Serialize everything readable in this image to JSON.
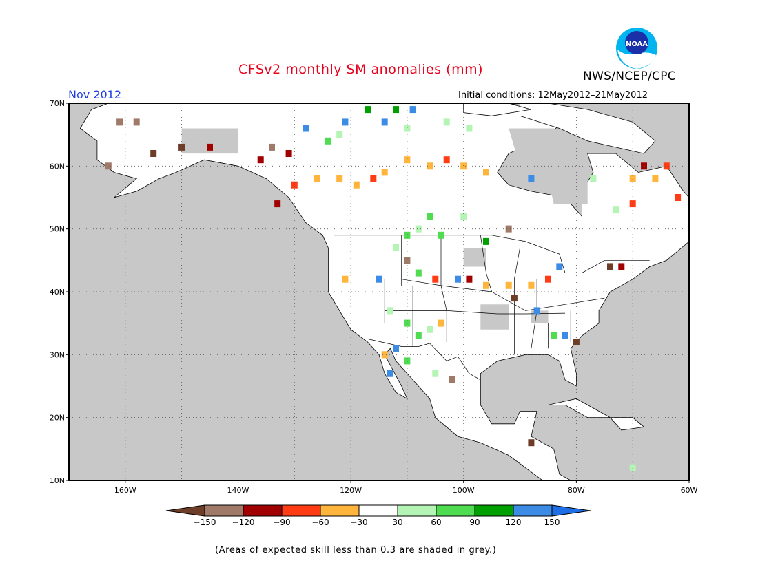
{
  "header": {
    "title": "CFSv2 monthly SM anomalies (mm)",
    "org": "NWS/NCEP/CPC",
    "logo_text": "NOAA",
    "valid_month": "Nov 2012",
    "initial_conditions": "Initial conditions: 12May2012–21May2012"
  },
  "map": {
    "projection": "lat-lon",
    "lon_range": [
      -170,
      -60
    ],
    "lat_range": [
      10,
      70
    ],
    "lat_labels": [
      "70N",
      "60N",
      "50N",
      "40N",
      "30N",
      "20N",
      "10N"
    ],
    "lon_labels": [
      "160W",
      "140W",
      "120W",
      "100W",
      "80W",
      "60W"
    ],
    "grid": "dotted",
    "ocean_color": "#c8c8c8",
    "land_color": "#ffffff",
    "anomaly_cells": [
      {
        "lon": -161,
        "lat": 67,
        "value": -130
      },
      {
        "lon": -158,
        "lat": 67,
        "value": -130
      },
      {
        "lon": -163,
        "lat": 60,
        "value": -130
      },
      {
        "lon": -155,
        "lat": 62,
        "value": -150
      },
      {
        "lon": -150,
        "lat": 63,
        "value": -150
      },
      {
        "lon": -145,
        "lat": 63,
        "value": -100
      },
      {
        "lon": -136,
        "lat": 61,
        "value": -100
      },
      {
        "lon": -134,
        "lat": 63,
        "value": -130
      },
      {
        "lon": -131,
        "lat": 62,
        "value": -100
      },
      {
        "lon": -130,
        "lat": 57,
        "value": -70
      },
      {
        "lon": -126,
        "lat": 58,
        "value": -45
      },
      {
        "lon": -122,
        "lat": 58,
        "value": -45
      },
      {
        "lon": -119,
        "lat": 57,
        "value": -45
      },
      {
        "lon": -116,
        "lat": 58,
        "value": -70
      },
      {
        "lon": -114,
        "lat": 59,
        "value": -45
      },
      {
        "lon": -110,
        "lat": 61,
        "value": -45
      },
      {
        "lon": -106,
        "lat": 60,
        "value": -45
      },
      {
        "lon": -103,
        "lat": 61,
        "value": -70
      },
      {
        "lon": -100,
        "lat": 60,
        "value": -45
      },
      {
        "lon": -96,
        "lat": 59,
        "value": -45
      },
      {
        "lon": -133,
        "lat": 54,
        "value": -100
      },
      {
        "lon": -128,
        "lat": 66,
        "value": 130
      },
      {
        "lon": -121,
        "lat": 67,
        "value": 130
      },
      {
        "lon": -114,
        "lat": 67,
        "value": 130
      },
      {
        "lon": -112,
        "lat": 69,
        "value": 100
      },
      {
        "lon": -117,
        "lat": 69,
        "value": 100
      },
      {
        "lon": -109,
        "lat": 69,
        "value": 130
      },
      {
        "lon": -122,
        "lat": 65,
        "value": 45
      },
      {
        "lon": -110,
        "lat": 66,
        "value": 45
      },
      {
        "lon": -103,
        "lat": 67,
        "value": 45
      },
      {
        "lon": -99,
        "lat": 66,
        "value": 45
      },
      {
        "lon": -124,
        "lat": 64,
        "value": 75
      },
      {
        "lon": -106,
        "lat": 52,
        "value": 75
      },
      {
        "lon": -108,
        "lat": 50,
        "value": 45
      },
      {
        "lon": -104,
        "lat": 49,
        "value": 75
      },
      {
        "lon": -110,
        "lat": 49,
        "value": 75
      },
      {
        "lon": -112,
        "lat": 47,
        "value": 45
      },
      {
        "lon": -100,
        "lat": 52,
        "value": 45
      },
      {
        "lon": -96,
        "lat": 48,
        "value": 100
      },
      {
        "lon": -121,
        "lat": 42,
        "value": -45
      },
      {
        "lon": -115,
        "lat": 42,
        "value": 130
      },
      {
        "lon": -110,
        "lat": 45,
        "value": -130
      },
      {
        "lon": -108,
        "lat": 43,
        "value": 75
      },
      {
        "lon": -105,
        "lat": 42,
        "value": -70
      },
      {
        "lon": -101,
        "lat": 42,
        "value": 130
      },
      {
        "lon": -99,
        "lat": 42,
        "value": -100
      },
      {
        "lon": -96,
        "lat": 41,
        "value": -45
      },
      {
        "lon": -92,
        "lat": 41,
        "value": -45
      },
      {
        "lon": -88,
        "lat": 41,
        "value": -45
      },
      {
        "lon": -91,
        "lat": 39,
        "value": -150
      },
      {
        "lon": -87,
        "lat": 37,
        "value": 130
      },
      {
        "lon": -85,
        "lat": 42,
        "value": -70
      },
      {
        "lon": -83,
        "lat": 44,
        "value": 130
      },
      {
        "lon": -74,
        "lat": 44,
        "value": -150
      },
      {
        "lon": -72,
        "lat": 44,
        "value": -100
      },
      {
        "lon": -80,
        "lat": 32,
        "value": -150
      },
      {
        "lon": -82,
        "lat": 33,
        "value": 130
      },
      {
        "lon": -84,
        "lat": 33,
        "value": 75
      },
      {
        "lon": -113,
        "lat": 37,
        "value": 45
      },
      {
        "lon": -110,
        "lat": 35,
        "value": 75
      },
      {
        "lon": -108,
        "lat": 33,
        "value": 75
      },
      {
        "lon": -106,
        "lat": 34,
        "value": 45
      },
      {
        "lon": -104,
        "lat": 35,
        "value": -45
      },
      {
        "lon": -112,
        "lat": 31,
        "value": 130
      },
      {
        "lon": -113,
        "lat": 27,
        "value": 130
      },
      {
        "lon": -114,
        "lat": 30,
        "value": -45
      },
      {
        "lon": -110,
        "lat": 29,
        "value": 75
      },
      {
        "lon": -105,
        "lat": 27,
        "value": 45
      },
      {
        "lon": -102,
        "lat": 26,
        "value": -130
      },
      {
        "lon": -88,
        "lat": 16,
        "value": -150
      },
      {
        "lon": -68,
        "lat": 60,
        "value": -100
      },
      {
        "lon": -64,
        "lat": 60,
        "value": -70
      },
      {
        "lon": -70,
        "lat": 58,
        "value": -45
      },
      {
        "lon": -66,
        "lat": 58,
        "value": -45
      },
      {
        "lon": -70,
        "lat": 54,
        "value": -70
      },
      {
        "lon": -62,
        "lat": 55,
        "value": -70
      },
      {
        "lon": -77,
        "lat": 58,
        "value": 45
      },
      {
        "lon": -73,
        "lat": 53,
        "value": 45
      },
      {
        "lon": -88,
        "lat": 58,
        "value": 130
      },
      {
        "lon": -92,
        "lat": 50,
        "value": -130
      },
      {
        "lon": -70,
        "lat": 12,
        "value": 45
      }
    ]
  },
  "legend": {
    "labels": [
      "−150",
      "−120",
      "−90",
      "−60",
      "−30",
      "30",
      "60",
      "90",
      "120",
      "150"
    ],
    "colors": [
      "#6e3d28",
      "#a07a68",
      "#a00000",
      "#ff3c14",
      "#ffb43c",
      "#ffffff",
      "#b4f4b4",
      "#50dc50",
      "#00a000",
      "#3c8ce6",
      "#1e6ee6"
    ]
  },
  "footnote": "(Areas of expected skill less than 0.3 are shaded in grey.)"
}
